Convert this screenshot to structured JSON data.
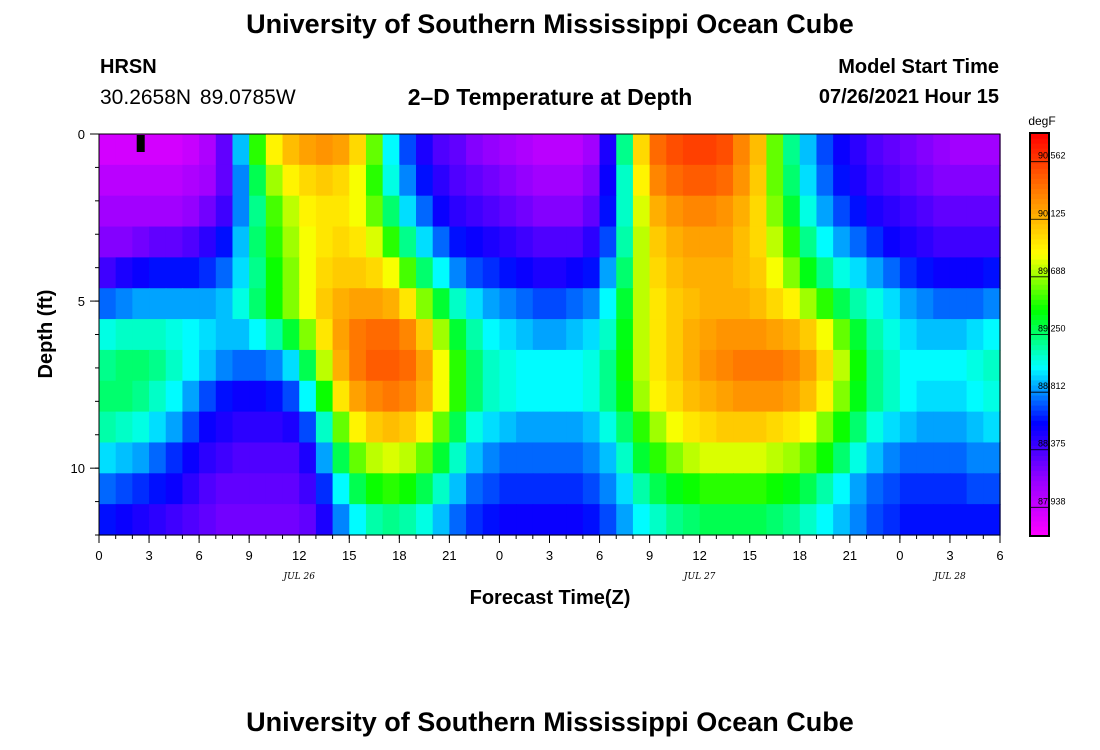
{
  "header": {
    "title_top": "University of Southern Mississippi Ocean Cube",
    "title_bottom": "University of Southern Mississippi Ocean Cube",
    "station": "HRSN",
    "coords": "30.2658N  89.0785W",
    "plot_title": "2–D Temperature at Depth",
    "model_label": "Model Start Time",
    "model_time": "07/26/2021 Hour 15"
  },
  "chart_data": {
    "type": "heatmap",
    "title": "2–D Temperature at Depth",
    "xlabel": "Forecast Time(Z)",
    "ylabel": "Depth (ft)",
    "x_hours_range": [
      0,
      54
    ],
    "ylim": [
      12,
      0
    ],
    "x_ticks": [
      {
        "h": 0,
        "label": "0"
      },
      {
        "h": 3,
        "label": "3"
      },
      {
        "h": 6,
        "label": "6"
      },
      {
        "h": 9,
        "label": "9"
      },
      {
        "h": 12,
        "label": "12"
      },
      {
        "h": 15,
        "label": "15"
      },
      {
        "h": 18,
        "label": "18"
      },
      {
        "h": 21,
        "label": "21"
      },
      {
        "h": 24,
        "label": "0"
      },
      {
        "h": 27,
        "label": "3"
      },
      {
        "h": 30,
        "label": "6"
      },
      {
        "h": 33,
        "label": "9"
      },
      {
        "h": 36,
        "label": "12"
      },
      {
        "h": 39,
        "label": "15"
      },
      {
        "h": 42,
        "label": "18"
      },
      {
        "h": 45,
        "label": "21"
      },
      {
        "h": 48,
        "label": "0"
      },
      {
        "h": 51,
        "label": "3"
      },
      {
        "h": 54,
        "label": "6"
      }
    ],
    "date_labels": [
      {
        "h": 12,
        "label": "JUL 26"
      },
      {
        "h": 36,
        "label": "JUL 27"
      },
      {
        "h": 51,
        "label": "JUL 28"
      }
    ],
    "y_ticks": [
      {
        "d": 0,
        "label": "0"
      },
      {
        "d": 5,
        "label": "5"
      },
      {
        "d": 10,
        "label": "10"
      }
    ],
    "depths": [
      0,
      1,
      2,
      3,
      4,
      5,
      6,
      7,
      8,
      9,
      10,
      11,
      12
    ],
    "time_step_hours": 1,
    "temperatures": [
      [
        87.9,
        87.9,
        87.9,
        87.9,
        87.9,
        87.95,
        88.05,
        88.3,
        88.9,
        89.5,
        89.9,
        90.1,
        90.2,
        90.25,
        90.2,
        90.0,
        89.6,
        89.0,
        88.7,
        88.5,
        88.35,
        88.3,
        88.2,
        88.15,
        88.1,
        88.05,
        88.0,
        88.0,
        88.0,
        88.1,
        88.5,
        89.2,
        90.0,
        90.4,
        90.5,
        90.55,
        90.55,
        90.5,
        90.3,
        90.1,
        89.6,
        89.2,
        88.9,
        88.7,
        88.55,
        88.45,
        88.35,
        88.3,
        88.25,
        88.2,
        88.15,
        88.1,
        88.1,
        88.1,
        88.1
      ],
      [
        88.0,
        88.0,
        88.0,
        88.0,
        88.0,
        88.05,
        88.1,
        88.3,
        88.8,
        89.3,
        89.7,
        89.9,
        90.0,
        90.05,
        90.0,
        89.85,
        89.5,
        89.05,
        88.8,
        88.6,
        88.45,
        88.35,
        88.3,
        88.25,
        88.2,
        88.15,
        88.1,
        88.1,
        88.1,
        88.2,
        88.55,
        89.1,
        89.9,
        90.3,
        90.4,
        90.45,
        90.45,
        90.4,
        90.25,
        90.05,
        89.6,
        89.25,
        88.95,
        88.75,
        88.6,
        88.5,
        88.4,
        88.35,
        88.3,
        88.25,
        88.2,
        88.2,
        88.2,
        88.2,
        88.2
      ],
      [
        88.1,
        88.1,
        88.1,
        88.1,
        88.1,
        88.15,
        88.25,
        88.4,
        88.8,
        89.2,
        89.55,
        89.75,
        89.9,
        89.95,
        89.95,
        89.85,
        89.6,
        89.25,
        88.95,
        88.75,
        88.55,
        88.45,
        88.4,
        88.35,
        88.3,
        88.25,
        88.2,
        88.2,
        88.2,
        88.3,
        88.6,
        89.1,
        89.8,
        90.15,
        90.25,
        90.3,
        90.3,
        90.25,
        90.15,
        90.0,
        89.65,
        89.35,
        89.05,
        88.85,
        88.7,
        88.6,
        88.5,
        88.45,
        88.4,
        88.35,
        88.3,
        88.3,
        88.3,
        88.3,
        88.3
      ],
      [
        88.2,
        88.2,
        88.25,
        88.3,
        88.3,
        88.35,
        88.45,
        88.6,
        88.9,
        89.25,
        89.5,
        89.7,
        89.85,
        89.95,
        90.0,
        89.95,
        89.8,
        89.5,
        89.2,
        88.95,
        88.75,
        88.6,
        88.55,
        88.5,
        88.45,
        88.4,
        88.35,
        88.35,
        88.35,
        88.45,
        88.7,
        89.15,
        89.75,
        90.05,
        90.15,
        90.2,
        90.2,
        90.2,
        90.1,
        90.0,
        89.75,
        89.5,
        89.2,
        89.0,
        88.85,
        88.75,
        88.65,
        88.55,
        88.5,
        88.45,
        88.4,
        88.4,
        88.4,
        88.4,
        88.4
      ],
      [
        88.4,
        88.5,
        88.55,
        88.6,
        88.6,
        88.6,
        88.65,
        88.75,
        88.95,
        89.2,
        89.45,
        89.65,
        89.85,
        90.0,
        90.05,
        90.05,
        90.0,
        89.85,
        89.55,
        89.25,
        89.0,
        88.8,
        88.7,
        88.65,
        88.6,
        88.55,
        88.5,
        88.5,
        88.55,
        88.6,
        88.85,
        89.25,
        89.75,
        90.0,
        90.1,
        90.15,
        90.15,
        90.15,
        90.1,
        90.05,
        89.85,
        89.65,
        89.4,
        89.2,
        89.05,
        88.95,
        88.85,
        88.75,
        88.65,
        88.6,
        88.55,
        88.55,
        88.55,
        88.6,
        88.6
      ],
      [
        88.75,
        88.8,
        88.85,
        88.85,
        88.85,
        88.85,
        88.85,
        88.9,
        89.05,
        89.25,
        89.45,
        89.65,
        89.85,
        90.05,
        90.15,
        90.2,
        90.2,
        90.15,
        89.95,
        89.65,
        89.35,
        89.1,
        88.95,
        88.85,
        88.8,
        88.75,
        88.7,
        88.7,
        88.75,
        88.8,
        89.0,
        89.35,
        89.75,
        89.95,
        90.05,
        90.1,
        90.15,
        90.15,
        90.15,
        90.1,
        90.0,
        89.9,
        89.7,
        89.5,
        89.3,
        89.15,
        89.05,
        88.95,
        88.85,
        88.8,
        88.75,
        88.75,
        88.75,
        88.8,
        88.8
      ],
      [
        89.05,
        89.1,
        89.1,
        89.1,
        89.05,
        89.0,
        88.95,
        88.9,
        88.9,
        89.0,
        89.15,
        89.35,
        89.65,
        89.95,
        90.2,
        90.35,
        90.4,
        90.4,
        90.3,
        90.05,
        89.7,
        89.35,
        89.15,
        89.0,
        88.95,
        88.9,
        88.85,
        88.85,
        88.9,
        88.95,
        89.1,
        89.4,
        89.75,
        89.95,
        90.05,
        90.15,
        90.2,
        90.25,
        90.25,
        90.25,
        90.2,
        90.15,
        90.05,
        89.85,
        89.6,
        89.35,
        89.15,
        89.05,
        88.95,
        88.9,
        88.9,
        88.9,
        88.95,
        89.0,
        89.05
      ],
      [
        89.2,
        89.25,
        89.25,
        89.2,
        89.1,
        89.0,
        88.9,
        88.8,
        88.75,
        88.75,
        88.8,
        88.95,
        89.3,
        89.75,
        90.15,
        90.35,
        90.45,
        90.45,
        90.4,
        90.2,
        89.85,
        89.5,
        89.25,
        89.1,
        89.05,
        89.0,
        89.0,
        89.0,
        89.0,
        89.05,
        89.2,
        89.45,
        89.75,
        89.95,
        90.05,
        90.15,
        90.25,
        90.3,
        90.35,
        90.35,
        90.35,
        90.3,
        90.2,
        90.0,
        89.75,
        89.45,
        89.2,
        89.1,
        89.0,
        89.0,
        89.0,
        89.0,
        89.05,
        89.1,
        89.15
      ],
      [
        89.25,
        89.25,
        89.2,
        89.1,
        89.0,
        88.85,
        88.7,
        88.6,
        88.55,
        88.55,
        88.6,
        88.7,
        89.0,
        89.45,
        89.95,
        90.2,
        90.3,
        90.35,
        90.3,
        90.15,
        89.85,
        89.5,
        89.25,
        89.1,
        89.05,
        89.0,
        89.0,
        89.0,
        89.0,
        89.05,
        89.2,
        89.4,
        89.7,
        89.9,
        90.0,
        90.1,
        90.15,
        90.2,
        90.25,
        90.25,
        90.25,
        90.2,
        90.1,
        89.9,
        89.65,
        89.4,
        89.2,
        89.1,
        89.0,
        88.95,
        88.95,
        88.95,
        89.0,
        89.05,
        89.05
      ],
      [
        89.15,
        89.1,
        89.05,
        88.95,
        88.85,
        88.7,
        88.55,
        88.5,
        88.45,
        88.45,
        88.45,
        88.5,
        88.7,
        89.1,
        89.6,
        89.9,
        90.05,
        90.1,
        90.05,
        89.9,
        89.6,
        89.3,
        89.05,
        88.95,
        88.9,
        88.85,
        88.85,
        88.85,
        88.85,
        88.9,
        89.05,
        89.25,
        89.5,
        89.7,
        89.85,
        89.95,
        90.0,
        90.05,
        90.05,
        90.05,
        90.0,
        89.95,
        89.85,
        89.65,
        89.45,
        89.25,
        89.05,
        88.95,
        88.9,
        88.85,
        88.85,
        88.85,
        88.9,
        88.95,
        88.95
      ],
      [
        88.95,
        88.9,
        88.85,
        88.75,
        88.65,
        88.55,
        88.45,
        88.4,
        88.35,
        88.35,
        88.35,
        88.35,
        88.5,
        88.85,
        89.3,
        89.6,
        89.75,
        89.8,
        89.75,
        89.6,
        89.35,
        89.1,
        88.9,
        88.8,
        88.75,
        88.75,
        88.75,
        88.75,
        88.75,
        88.8,
        88.9,
        89.1,
        89.35,
        89.5,
        89.65,
        89.75,
        89.8,
        89.8,
        89.8,
        89.8,
        89.75,
        89.7,
        89.6,
        89.45,
        89.25,
        89.05,
        88.9,
        88.8,
        88.75,
        88.75,
        88.75,
        88.75,
        88.8,
        88.8,
        88.8
      ],
      [
        88.75,
        88.7,
        88.65,
        88.6,
        88.55,
        88.45,
        88.35,
        88.3,
        88.3,
        88.3,
        88.3,
        88.3,
        88.4,
        88.65,
        89.0,
        89.3,
        89.45,
        89.5,
        89.45,
        89.3,
        89.1,
        88.9,
        88.75,
        88.7,
        88.65,
        88.65,
        88.65,
        88.65,
        88.65,
        88.7,
        88.8,
        88.95,
        89.15,
        89.3,
        89.4,
        89.45,
        89.5,
        89.5,
        89.5,
        89.5,
        89.45,
        89.4,
        89.3,
        89.15,
        89.0,
        88.85,
        88.75,
        88.7,
        88.65,
        88.65,
        88.65,
        88.65,
        88.7,
        88.7,
        88.7
      ],
      [
        88.6,
        88.55,
        88.5,
        88.45,
        88.4,
        88.35,
        88.3,
        88.25,
        88.25,
        88.25,
        88.25,
        88.25,
        88.3,
        88.5,
        88.8,
        89.0,
        89.15,
        89.2,
        89.15,
        89.05,
        88.9,
        88.75,
        88.65,
        88.6,
        88.55,
        88.55,
        88.55,
        88.55,
        88.55,
        88.6,
        88.7,
        88.85,
        89.0,
        89.1,
        89.2,
        89.25,
        89.3,
        89.3,
        89.3,
        89.3,
        89.25,
        89.2,
        89.1,
        89.0,
        88.9,
        88.8,
        88.7,
        88.65,
        88.6,
        88.6,
        88.6,
        88.6,
        88.6,
        88.6,
        88.6
      ]
    ],
    "colorbar": {
      "unit": "degF",
      "min": 87.72,
      "max": 90.78,
      "tick_values": [
        87.938,
        88.375,
        88.812,
        89.25,
        89.688,
        90.125,
        90.562
      ],
      "tick_labels": [
        "87.938",
        "88.375",
        "88.812",
        "89.250",
        "89.688",
        "90.125",
        "90.562"
      ]
    },
    "marker": {
      "h": 2.5,
      "label": "model-start-marker"
    }
  }
}
